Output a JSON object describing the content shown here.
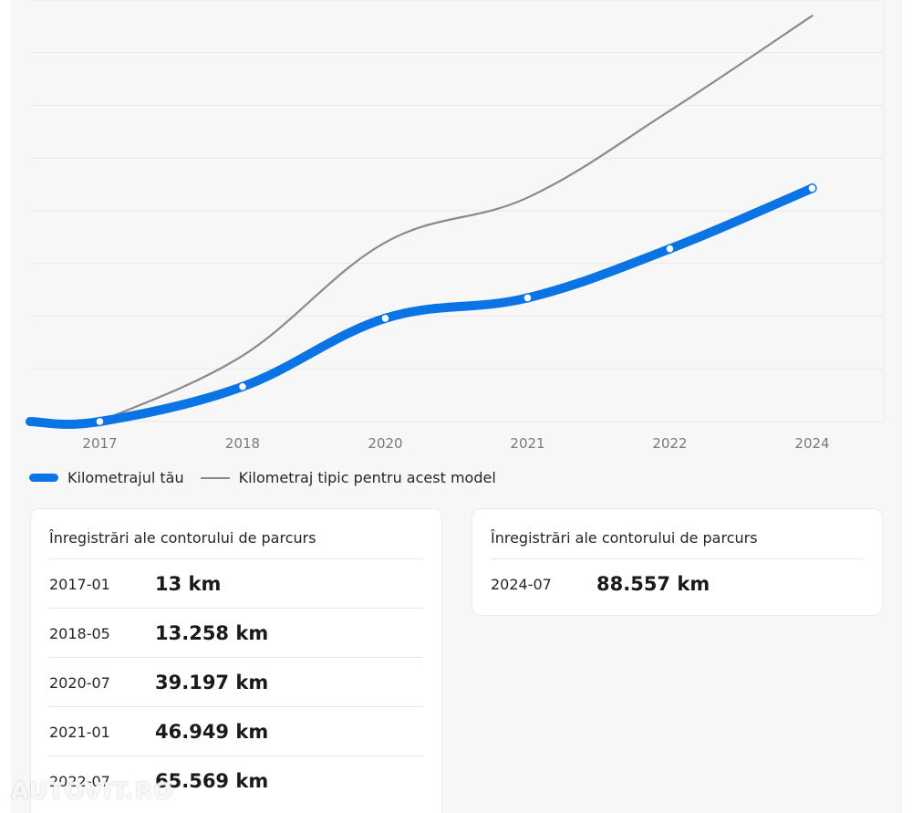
{
  "chart_data": {
    "type": "line",
    "x_ticks": [
      "2017",
      "2018",
      "2020",
      "2021",
      "2022",
      "2024"
    ],
    "ylim": [
      0,
      160000
    ],
    "grid": true,
    "legend_position": "bottom-left",
    "series": [
      {
        "name": "Kilometrajul tău",
        "color": "#0b74e5",
        "points": [
          {
            "x": "2016-07",
            "y": 0
          },
          {
            "x": "2017-01",
            "y": 13
          },
          {
            "x": "2018-05",
            "y": 13258
          },
          {
            "x": "2020-07",
            "y": 39197
          },
          {
            "x": "2021-01",
            "y": 46949
          },
          {
            "x": "2022-07",
            "y": 65569
          },
          {
            "x": "2024-07",
            "y": 88557
          }
        ]
      },
      {
        "name": "Kilometraj tipic pentru acest model",
        "color": "#8a8a8a",
        "points": [
          {
            "x": "2017-01",
            "y": 0
          },
          {
            "x": "2018-05",
            "y": 25000
          },
          {
            "x": "2020-07",
            "y": 68000
          },
          {
            "x": "2021-01",
            "y": 85000
          },
          {
            "x": "2022-07",
            "y": 118000
          },
          {
            "x": "2024-07",
            "y": 154000
          }
        ]
      }
    ]
  },
  "legend": {
    "own_label": "Kilometrajul tău",
    "typical_label": "Kilometraj tipic pentru acest model"
  },
  "records": {
    "title": "Înregistrări ale contorului de parcurs",
    "left": [
      {
        "date": "2017-01",
        "km": "13 km"
      },
      {
        "date": "2018-05",
        "km": "13.258 km"
      },
      {
        "date": "2020-07",
        "km": "39.197 km"
      },
      {
        "date": "2021-01",
        "km": "46.949 km"
      },
      {
        "date": "2022-07",
        "km": "65.569 km"
      }
    ],
    "right": [
      {
        "date": "2024-07",
        "km": "88.557 km"
      }
    ]
  },
  "watermark": "AUTOVIT.RO"
}
